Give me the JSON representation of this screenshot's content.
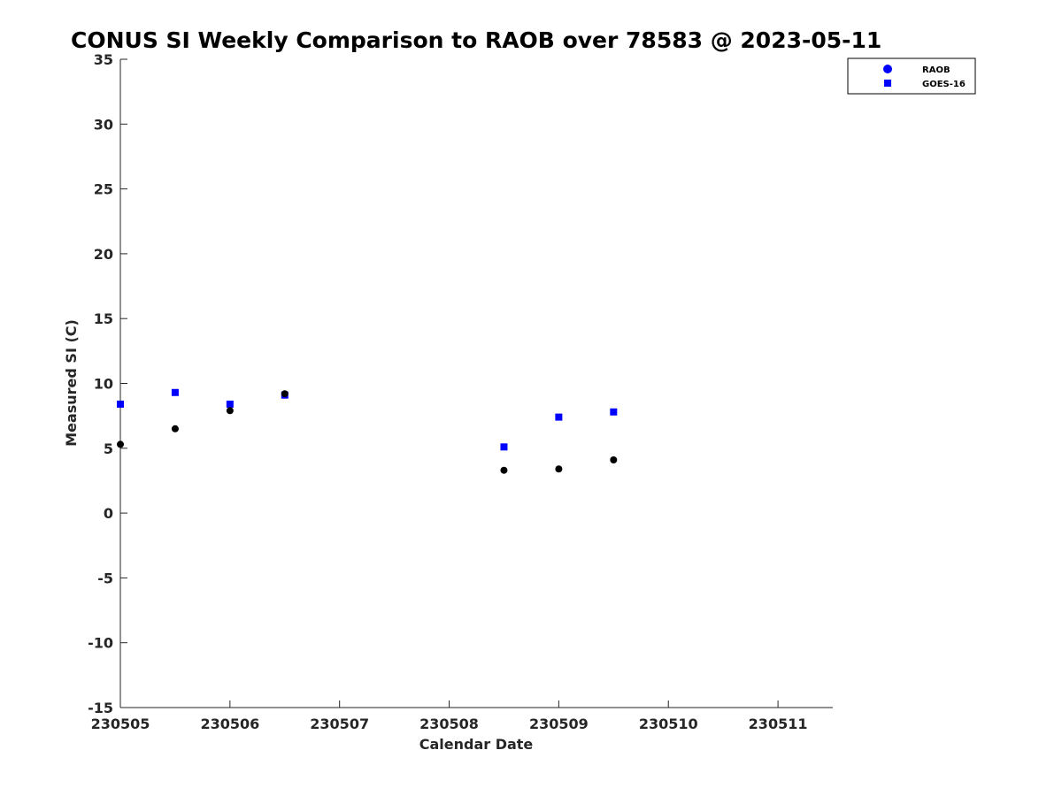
{
  "colors": {
    "raob": "#000000",
    "goes": "#0000ff",
    "legend_raob_marker": "#0000ff",
    "axis": "#262626"
  },
  "chart_data": {
    "type": "scatter",
    "title": "CONUS SI Weekly Comparison to RAOB over 78583 @ 2023-05-11",
    "xlabel": "Calendar Date",
    "ylabel": "Measured SI (C)",
    "xlim": [
      0,
      6.5
    ],
    "ylim": [
      -15,
      35
    ],
    "xticks": [
      {
        "value": 0,
        "label": "230505"
      },
      {
        "value": 1,
        "label": "230506"
      },
      {
        "value": 2,
        "label": "230507"
      },
      {
        "value": 3,
        "label": "230508"
      },
      {
        "value": 4,
        "label": "230509"
      },
      {
        "value": 5,
        "label": "230510"
      },
      {
        "value": 6,
        "label": "230511"
      }
    ],
    "yticks": [
      35,
      30,
      25,
      20,
      15,
      10,
      5,
      0,
      -5,
      -10,
      -15
    ],
    "legend_position": "top-right",
    "series": [
      {
        "name": "RAOB",
        "marker": "circle",
        "x": [
          0,
          0.5,
          1,
          1.5,
          3.5,
          4,
          4.5
        ],
        "y": [
          5.3,
          6.5,
          7.9,
          9.2,
          3.3,
          3.4,
          4.1
        ]
      },
      {
        "name": "GOES-16",
        "marker": "square",
        "x": [
          0,
          0.5,
          1,
          1.5,
          3.5,
          4,
          4.5
        ],
        "y": [
          8.4,
          9.3,
          8.4,
          9.1,
          5.1,
          7.4,
          7.8
        ]
      }
    ]
  }
}
